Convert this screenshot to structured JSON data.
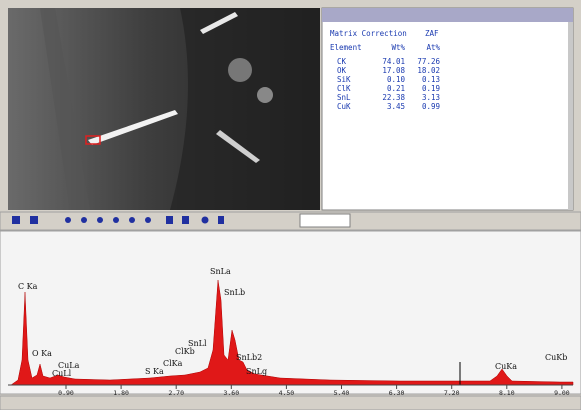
{
  "results": {
    "heading": "Matrix Correction",
    "correction": "ZAF",
    "columns": [
      "Element",
      "Wt%",
      "At%"
    ],
    "rows": [
      [
        "CK",
        "74.01",
        "77.26"
      ],
      [
        "OK",
        "17.08",
        "18.02"
      ],
      [
        "SiK",
        "0.10",
        "0.13"
      ],
      [
        "ClK",
        "0.21",
        "0.19"
      ],
      [
        "SnL",
        "22.38",
        "3.13"
      ],
      [
        "CuK",
        "3.45",
        "0.99"
      ]
    ]
  },
  "spectrum": {
    "peak_labels": [
      "C Ka",
      "O Ka",
      "CuLl",
      "CuLa",
      "S Ka",
      "ClKa",
      "ClKb",
      "SnLl",
      "SnLa",
      "SnLb",
      "SnLb2",
      "SnLg",
      "CuKa",
      "CuKb"
    ],
    "axis_labels": [
      "0.90",
      "1.80",
      "2.70",
      "3.60",
      "4.50",
      "5.40",
      "6.30",
      "7.20",
      "8.10",
      "9.00"
    ]
  }
}
